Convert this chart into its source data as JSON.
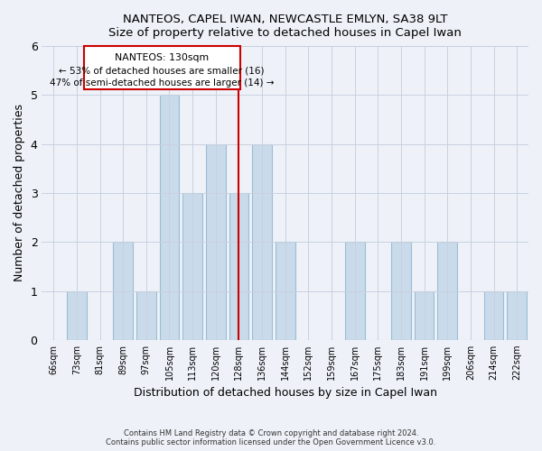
{
  "title": "NANTEOS, CAPEL IWAN, NEWCASTLE EMLYN, SA38 9LT",
  "subtitle": "Size of property relative to detached houses in Capel Iwan",
  "xlabel": "Distribution of detached houses by size in Capel Iwan",
  "ylabel": "Number of detached properties",
  "categories": [
    "66sqm",
    "73sqm",
    "81sqm",
    "89sqm",
    "97sqm",
    "105sqm",
    "113sqm",
    "120sqm",
    "128sqm",
    "136sqm",
    "144sqm",
    "152sqm",
    "159sqm",
    "167sqm",
    "175sqm",
    "183sqm",
    "191sqm",
    "199sqm",
    "206sqm",
    "214sqm",
    "222sqm"
  ],
  "values": [
    0,
    1,
    0,
    2,
    1,
    5,
    3,
    4,
    3,
    4,
    2,
    0,
    0,
    2,
    0,
    2,
    1,
    2,
    0,
    1,
    1
  ],
  "bar_color": "#c9daea",
  "bar_edge_color": "#9bbdd4",
  "reference_line_x": 8,
  "reference_line_label": "NANTEOS: 130sqm",
  "annotation_line1": "← 53% of detached houses are smaller (16)",
  "annotation_line2": "47% of semi-detached houses are larger (14) →",
  "box_color": "#ffffff",
  "box_edge_color": "#cc0000",
  "ref_line_color": "#cc0000",
  "ylim": [
    0,
    6
  ],
  "yticks": [
    0,
    1,
    2,
    3,
    4,
    5,
    6
  ],
  "grid_color": "#c8d0e0",
  "bg_color": "#eef2f8",
  "footer1": "Contains HM Land Registry data © Crown copyright and database right 2024.",
  "footer2": "Contains public sector information licensed under the Open Government Licence v3.0."
}
